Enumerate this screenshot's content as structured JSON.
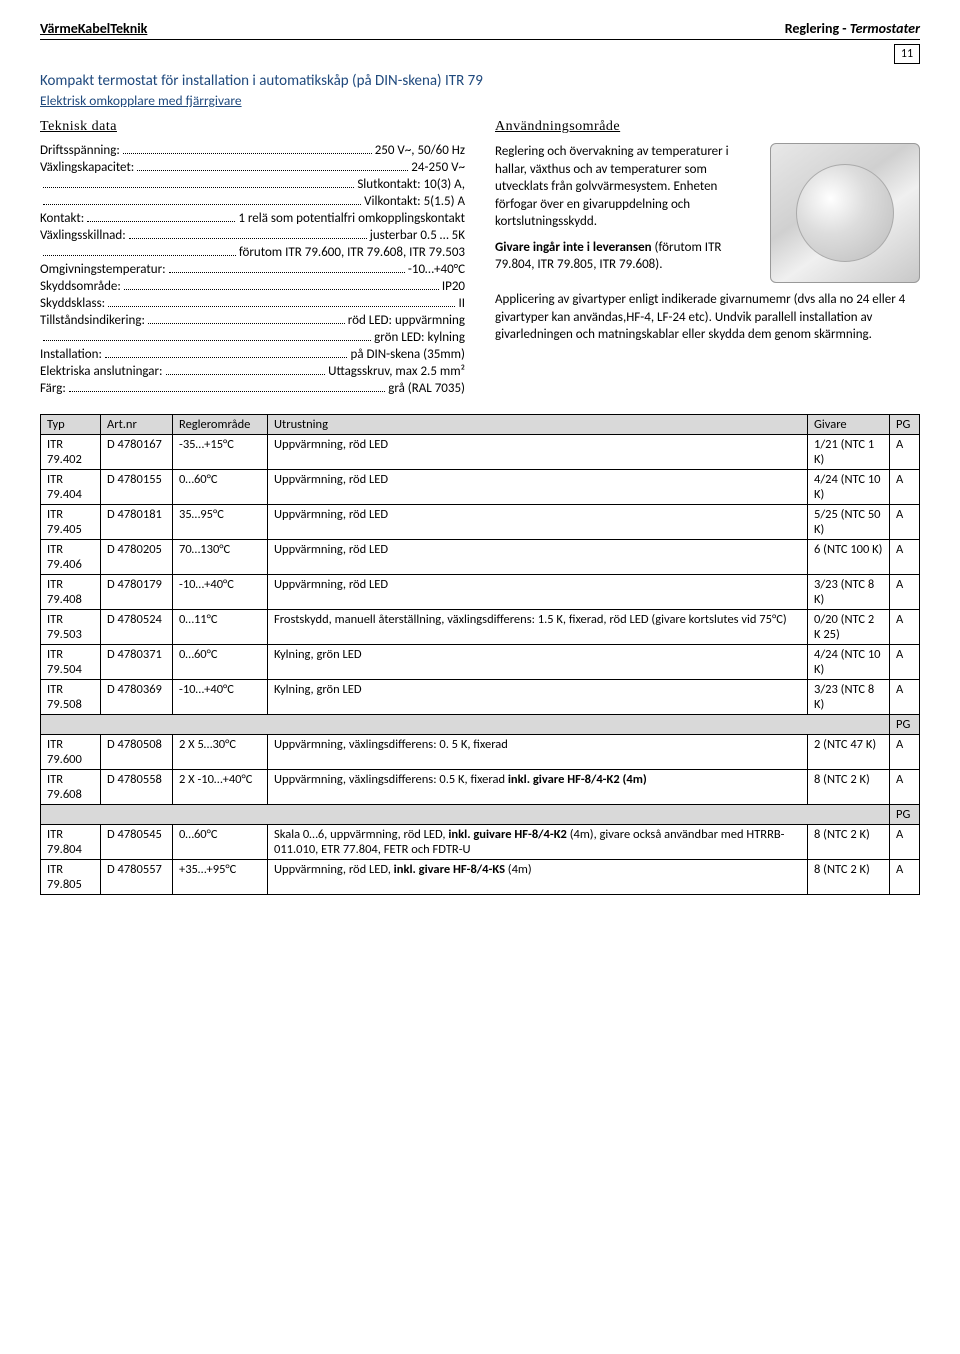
{
  "header": {
    "left": "VärmeKabelTeknik",
    "right_plain": "Reglering - ",
    "right_italic": "Termostater",
    "page_number": "11"
  },
  "title": "Kompakt termostat för installation i automatikskåp (på DIN-skena) ITR 79",
  "subtitle": "Elektrisk omkopplare med fjärrgivare",
  "left_heading": "Teknisk data",
  "right_heading": "Användningsområde",
  "specs": [
    {
      "label": "Driftsspänning:",
      "value": "250 V~, 50/60 Hz"
    },
    {
      "label": "Växlingskapacitet:",
      "value": "24-250 V~"
    },
    {
      "label": "",
      "value": "Slutkontakt: 10(3) A,"
    },
    {
      "label": "",
      "value": "Vilkontakt: 5(1.5) A"
    },
    {
      "label": "Kontakt:",
      "value": "1 relä som potentialfri omkopplingskontakt"
    },
    {
      "label": "Växlingsskillnad:",
      "value": "justerbar 0.5 … 5K"
    },
    {
      "label": "",
      "value": "förutom ITR 79.600, ITR 79.608, ITR 79.503"
    },
    {
      "label": "Omgivningstemperatur:",
      "value": "-10…+40°C"
    },
    {
      "label": "Skyddsområde:",
      "value": "IP20"
    },
    {
      "label": "Skyddsklass:",
      "value": "II"
    },
    {
      "label": "Tillståndsindikering:",
      "value": "röd LED: uppvärmning"
    },
    {
      "label": "",
      "value": "grön LED: kylning"
    },
    {
      "label": "Installation:",
      "value": "på DIN-skena (35mm)"
    },
    {
      "label": "Elektriska anslutningar:",
      "value": "Uttagsskruv, max 2.5 mm²"
    },
    {
      "label": "Färg:",
      "value": "grå (RAL 7035)"
    }
  ],
  "usage": {
    "p1": "Reglering och övervakning av temperaturer i hallar, växthus och av temperaturer som utvecklats från golvvärmesystem. Enheten förfogar över en givaruppdelning och kortslutningsskydd.",
    "p2_bold": "Givare ingår inte i leveransen",
    "p2_rest": " (förutom ITR 79.804, ITR 79.805, ITR 79.608).",
    "p3": "Applicering av givartyper enligt indikerade givarnumemr (dvs alla no 24 eller 4 givartyper kan användas,HF-4, LF-24 etc). Undvik parallell installation av givarledningen och matningskablar eller skydda dem genom skärmning."
  },
  "table": {
    "headers": [
      "Typ",
      "Art.nr",
      "Reglerområde",
      "Utrustning",
      "Givare",
      "PG"
    ],
    "rows": [
      {
        "typ": "ITR 79.402",
        "art": "D 4780167",
        "reg": "-35…+15°C",
        "utr": "Uppvärmning, röd LED",
        "giv": "1/21 (NTC 1 K)",
        "pg": "A"
      },
      {
        "typ": "ITR 79.404",
        "art": "D 4780155",
        "reg": "0…60°C",
        "utr": "Uppvärmning, röd LED",
        "giv": "4/24 (NTC 10 K)",
        "pg": "A"
      },
      {
        "typ": "ITR 79.405",
        "art": "D 4780181",
        "reg": "35…95°C",
        "utr": "Uppvärmning, röd LED",
        "giv": "5/25 (NTC 50 K)",
        "pg": "A"
      },
      {
        "typ": "ITR 79.406",
        "art": "D 4780205",
        "reg": "70…130°C",
        "utr": "Uppvärmning, röd LED",
        "giv": "6 (NTC 100 K)",
        "pg": "A"
      },
      {
        "typ": "ITR 79.408",
        "art": "D 4780179",
        "reg": "-10…+40°C",
        "utr": "Uppvärmning, röd LED",
        "giv": "3/23 (NTC 8 K)",
        "pg": "A"
      },
      {
        "typ": "ITR 79.503",
        "art": "D 4780524",
        "reg": "0…11°C",
        "utr": "Frostskydd, manuell återställning, växlingsdifferens: 1.5 K, fixerad, röd LED (givare kortslutes vid 75°C)",
        "giv": "0/20 (NTC 2 K 25)",
        "pg": "A"
      },
      {
        "typ": "ITR 79.504",
        "art": "D 4780371",
        "reg": "0…60°C",
        "utr": "Kylning, grön LED",
        "giv": "4/24 (NTC 10 K)",
        "pg": "A"
      },
      {
        "typ": "ITR 79.508",
        "art": "D 4780369",
        "reg": "-10…+40°C",
        "utr": "Kylning, grön LED",
        "giv": "3/23 (NTC 8 K)",
        "pg": "A"
      }
    ],
    "band1_pg": "PG",
    "rows2": [
      {
        "typ": "ITR 79.600",
        "art": "D 4780508",
        "reg": "2 X 5…30°C",
        "utr": "Uppvärmning, växlingsdifferens: 0. 5 K, fixerad",
        "giv": "2 (NTC 47 K)",
        "pg": "A"
      },
      {
        "typ": "ITR 79.608",
        "art": "D 4780558",
        "reg": "2 X -10…+40°C",
        "utr_pre": "Uppvärmning, växlingsdifferens: 0.5 K, fixerad ",
        "utr_bold": "inkl. givare HF-8/4-K2 (4m)",
        "giv": "8 (NTC 2 K)",
        "pg": "A"
      }
    ],
    "band2_pg": "PG",
    "rows3": [
      {
        "typ": "ITR 79.804",
        "art": "D 4780545",
        "reg": "0…60°C",
        "utr_pre": "Skala 0…6, uppvärmning, röd LED, ",
        "utr_bold": "inkl. guivare HF-8/4-K2",
        "utr_post": " (4m), givare också användbar med HTRRB-011.010, ETR 77.804, FETR och FDTR-U",
        "giv": "8 (NTC 2 K)",
        "pg": "A"
      },
      {
        "typ": "ITR 79.805",
        "art": "D 4780557",
        "reg": "+35…+95°C",
        "utr_pre": "Uppvärmning, röd LED, ",
        "utr_bold": "inkl. givare HF-8/4-KS",
        "utr_post": " (4m)",
        "giv": "8 (NTC 2 K)",
        "pg": "A"
      }
    ]
  },
  "colors": {
    "heading": "#1f497d",
    "band": "#d9d9d9",
    "border": "#000000"
  }
}
